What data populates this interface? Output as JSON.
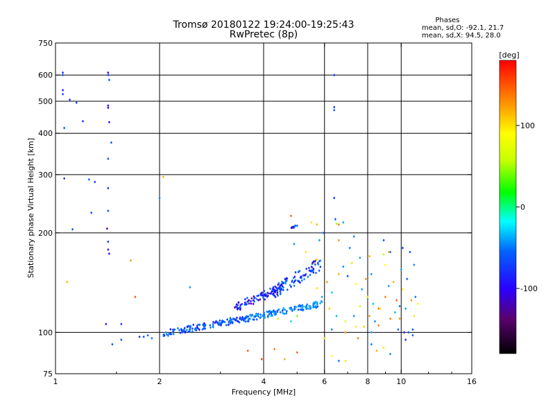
{
  "chart_data": {
    "type": "scatter",
    "title": "Tromsø 20180122 19:24:00-19:25:43",
    "subtitle": "RwPretec (8p)",
    "annotation": {
      "heading": "Phases",
      "line_o": "mean, sd,O: -92.1, 21.7",
      "line_x": "mean, sd,X:  94.5, 28.0"
    },
    "xlabel": "Frequency [MHz]",
    "ylabel": "Stationary phase Virtual Height [km]",
    "xscale": "log",
    "yscale": "log",
    "xlim": [
      1,
      16
    ],
    "ylim": [
      75,
      750
    ],
    "xticks": [
      1,
      2,
      4,
      6,
      8,
      10,
      16
    ],
    "xtick_labels": [
      "1",
      "2",
      "4",
      "6",
      "8",
      "10",
      "16"
    ],
    "yticks": [
      75,
      100,
      200,
      300,
      400,
      500,
      600,
      750
    ],
    "ytick_labels": [
      "75",
      "100",
      "200",
      "300",
      "400",
      "500",
      "600",
      "750"
    ],
    "x_gridlines": [
      2,
      4,
      6,
      8,
      10
    ],
    "y_gridlines": [
      100,
      200,
      300,
      400,
      500,
      600
    ],
    "colorbar": {
      "label": "[deg]",
      "range": [
        -180,
        180
      ],
      "ticks": [
        100,
        0,
        -100
      ],
      "tick_labels": [
        "100",
        "0",
        "-100"
      ]
    },
    "series": [
      {
        "name": "echoes",
        "points": [
          [
            1.05,
            610,
            -110
          ],
          [
            1.05,
            600,
            -100
          ],
          [
            1.05,
            540,
            -120
          ],
          [
            1.05,
            525,
            -105
          ],
          [
            1.06,
            415,
            -100
          ],
          [
            1.06,
            292,
            -110
          ],
          [
            1.1,
            505,
            -110
          ],
          [
            1.12,
            205,
            -100
          ],
          [
            1.15,
            495,
            -105
          ],
          [
            1.2,
            435,
            -110
          ],
          [
            1.25,
            290,
            -90
          ],
          [
            1.27,
            230,
            -100
          ],
          [
            1.3,
            285,
            -110
          ],
          [
            1.42,
            610,
            -130
          ],
          [
            1.42,
            600,
            -110
          ],
          [
            1.43,
            580,
            -100
          ],
          [
            1.42,
            485,
            -130
          ],
          [
            1.42,
            478,
            -130
          ],
          [
            1.43,
            432,
            -120
          ],
          [
            1.42,
            335,
            -100
          ],
          [
            1.42,
            273,
            -110
          ],
          [
            1.42,
            233,
            -100
          ],
          [
            1.41,
            206,
            -140
          ],
          [
            1.42,
            188,
            -110
          ],
          [
            1.42,
            178,
            -120
          ],
          [
            1.43,
            173,
            -130
          ],
          [
            1.45,
            375,
            -100
          ],
          [
            1.4,
            106,
            -120
          ],
          [
            1.46,
            92,
            -100
          ],
          [
            1.08,
            142,
            120
          ],
          [
            1.55,
            106,
            -110
          ],
          [
            1.55,
            95,
            -100
          ],
          [
            1.65,
            165,
            130
          ],
          [
            1.7,
            128,
            150
          ],
          [
            1.75,
            97,
            -110
          ],
          [
            1.8,
            97,
            -100
          ],
          [
            1.85,
            98,
            -90
          ],
          [
            1.9,
            96,
            -80
          ],
          [
            2.0,
            255,
            -80
          ],
          [
            2.05,
            295,
            120
          ],
          [
            2.45,
            137,
            -60
          ],
          [
            4.8,
            225,
            150
          ],
          [
            5.5,
            215,
            100
          ],
          [
            5.7,
            212,
            120
          ],
          [
            5.95,
            200,
            -80
          ],
          [
            6.4,
            600,
            -110
          ],
          [
            6.4,
            480,
            -110
          ],
          [
            6.4,
            470,
            -100
          ],
          [
            6.4,
            255,
            -110
          ],
          [
            6.45,
            220,
            -100
          ],
          [
            6.5,
            213,
            40
          ],
          [
            6.6,
            212,
            140
          ],
          [
            6.8,
            215,
            -60
          ],
          [
            3.6,
            88,
            150
          ],
          [
            4.3,
            89,
            140
          ],
          [
            4.6,
            83,
            120
          ],
          [
            5.0,
            87,
            150
          ],
          [
            3.95,
            83,
            160
          ],
          [
            9.3,
            110,
            140
          ],
          [
            9.7,
            125,
            150
          ],
          [
            10.3,
            95,
            -110
          ],
          [
            10.5,
            100,
            -100
          ],
          [
            10.8,
            98,
            -90
          ],
          [
            10.8,
            102,
            -100
          ],
          [
            10.2,
            100,
            -120
          ],
          [
            6.0,
            96,
            110
          ],
          [
            6.3,
            85,
            90
          ],
          [
            6.6,
            82,
            -80
          ],
          [
            6.9,
            82,
            100
          ],
          [
            8.2,
            92,
            -80
          ],
          [
            8.5,
            88,
            120
          ],
          [
            8.9,
            90,
            100
          ],
          [
            9.3,
            86,
            -70
          ],
          [
            9.8,
            102,
            -90
          ],
          [
            7.5,
            96,
            140
          ],
          [
            7.8,
            104,
            110
          ],
          [
            8.1,
            112,
            130
          ],
          [
            8.4,
            108,
            -70
          ],
          [
            8.7,
            118,
            100
          ],
          [
            9.0,
            128,
            140
          ],
          [
            9.2,
            138,
            -60
          ],
          [
            9.5,
            142,
            120
          ],
          [
            9.9,
            120,
            -80
          ],
          [
            10.1,
            135,
            100
          ],
          [
            10.4,
            145,
            -90
          ],
          [
            10.7,
            125,
            130
          ],
          [
            11.0,
            128,
            -80
          ],
          [
            11.2,
            122,
            90
          ],
          [
            10.9,
            160,
            -70
          ],
          [
            10.6,
            175,
            -100
          ],
          [
            10.1,
            180,
            -110
          ],
          [
            9.3,
            175,
            -90
          ],
          [
            8.9,
            172,
            60
          ],
          [
            8.1,
            170,
            120
          ],
          [
            7.6,
            168,
            -60
          ],
          [
            7.2,
            162,
            100
          ],
          [
            6.8,
            158,
            -70
          ],
          [
            6.6,
            150,
            120
          ],
          [
            7.0,
            148,
            -100
          ],
          [
            7.4,
            140,
            90
          ],
          [
            7.7,
            135,
            -60
          ],
          [
            8.0,
            128,
            110
          ],
          [
            8.3,
            122,
            -50
          ],
          [
            8.6,
            118,
            140
          ],
          [
            6.2,
            118,
            110
          ],
          [
            6.5,
            112,
            -50
          ],
          [
            6.9,
            108,
            80
          ],
          [
            7.3,
            112,
            -70
          ],
          [
            7.6,
            120,
            60
          ],
          [
            6.3,
            132,
            -40
          ],
          [
            6.1,
            142,
            130
          ],
          [
            5.9,
            128,
            -60
          ],
          [
            5.7,
            136,
            100
          ],
          [
            5.6,
            162,
            110
          ],
          [
            5.65,
            165,
            120
          ],
          [
            5.7,
            166,
            110
          ],
          [
            5.5,
            158,
            -60
          ],
          [
            5.3,
            150,
            -80
          ],
          [
            5.0,
            112,
            30
          ],
          [
            4.8,
            108,
            -40
          ],
          [
            4.6,
            114,
            90
          ],
          [
            4.4,
            110,
            60
          ],
          [
            4.2,
            112,
            -30
          ],
          [
            4.9,
            185,
            -70
          ],
          [
            5.3,
            175,
            100
          ],
          [
            5.8,
            190,
            -60
          ],
          [
            6.6,
            190,
            130
          ],
          [
            7.1,
            180,
            -80
          ],
          [
            7.3,
            195,
            -80
          ],
          [
            8.9,
            190,
            -100
          ],
          [
            9.2,
            175,
            120
          ],
          [
            10.0,
            155,
            -60
          ],
          [
            9.0,
            160,
            90
          ],
          [
            8.2,
            150,
            -60
          ],
          [
            7.9,
            145,
            130
          ],
          [
            9.6,
            115,
            -50
          ],
          [
            9.9,
            110,
            130
          ],
          [
            10.3,
            118,
            -60
          ],
          [
            10.9,
            112,
            100
          ],
          [
            8.6,
            105,
            140
          ],
          [
            8.2,
            100,
            -60
          ],
          [
            7.4,
            104,
            100
          ],
          [
            6.9,
            100,
            130
          ],
          [
            6.3,
            102,
            -80
          ]
        ],
        "phase_clusters": [
          {
            "freq_from": 2.05,
            "freq_to": 3.6,
            "height_from": 97,
            "height_to": 113,
            "phase": -95
          },
          {
            "freq_from": 3.6,
            "freq_to": 5.9,
            "height_from": 108,
            "height_to": 125,
            "phase": -75
          },
          {
            "freq_from": 3.3,
            "freq_to": 4.6,
            "height_from": 115,
            "height_to": 142,
            "phase": -115
          },
          {
            "freq_from": 4.2,
            "freq_to": 5.9,
            "height_from": 125,
            "height_to": 170,
            "phase": -100
          },
          {
            "freq_from": 4.8,
            "freq_to": 5.0,
            "height_from": 205,
            "height_to": 212,
            "phase": -110
          }
        ]
      }
    ]
  }
}
